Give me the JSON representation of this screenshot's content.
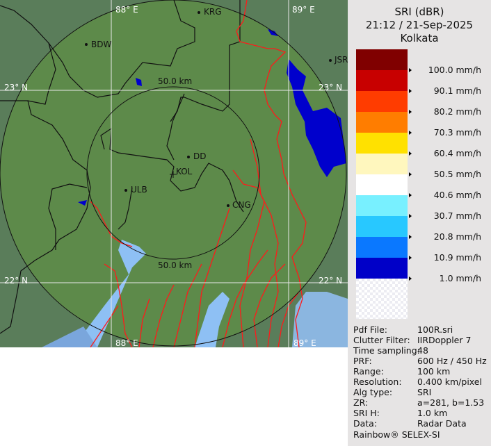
{
  "map": {
    "grid_labels": {
      "lon_88_top": "88° E",
      "lon_89_top": "89° E",
      "lon_88_bottom": "88° E",
      "lon_89_bottom": "89° E",
      "lat_23_left": "23° N",
      "lat_23_right": "23° N",
      "lat_22_left": "22° N",
      "lat_22_right": "22° N"
    },
    "range_rings": {
      "inner_top": "50.0 km",
      "inner_bottom": "50.0 km"
    },
    "cities": {
      "bdw": "BDW",
      "krg": "KRG",
      "jsr": "JSR",
      "dd": "DD",
      "kol": "KOL",
      "ulb": "ULB",
      "cng": "CNG"
    },
    "colors": {
      "land": "#5d8a4a",
      "sea": "#8ec0f4",
      "borders": "#111111",
      "rivers": "#ff1a1a",
      "rain": "#0000cc"
    }
  },
  "legend": {
    "title": "SRI (dBR)",
    "datetime": "21:12 / 21-Sep-2025",
    "station": "Kolkata",
    "colors": [
      "#800000",
      "#c80000",
      "#ff3c00",
      "#ff7d00",
      "#ffe100",
      "#fff7be",
      "#ffffff",
      "#78f0ff",
      "#28c8ff",
      "#0a78ff",
      "#0000c8"
    ],
    "labels": [
      "100.0 mm/h",
      "90.1 mm/h",
      "80.2 mm/h",
      "70.3 mm/h",
      "60.4 mm/h",
      "50.5 mm/h",
      "40.6 mm/h",
      "30.7 mm/h",
      "20.8 mm/h",
      "10.9 mm/h",
      "1.0 mm/h"
    ]
  },
  "info": [
    {
      "key": "Pdf File:",
      "value": "100R.sri"
    },
    {
      "key": "Clutter Filter:",
      "value": "IIRDoppler 7"
    },
    {
      "key": "Time sampling:",
      "value": "48"
    },
    {
      "key": "PRF:",
      "value": "600 Hz / 450 Hz"
    },
    {
      "key": "Range:",
      "value": "100 km"
    },
    {
      "key": "Resolution:",
      "value": "0.400 km/pixel"
    },
    {
      "key": "Alg type:",
      "value": "SRI"
    },
    {
      "key": "ZR:",
      "value": "a=281, b=1.53"
    },
    {
      "key": "SRI H:",
      "value": "1.0 km"
    },
    {
      "key": "Data:",
      "value": "Radar Data"
    }
  ],
  "footer": "Rainbow® SELEX-SI"
}
